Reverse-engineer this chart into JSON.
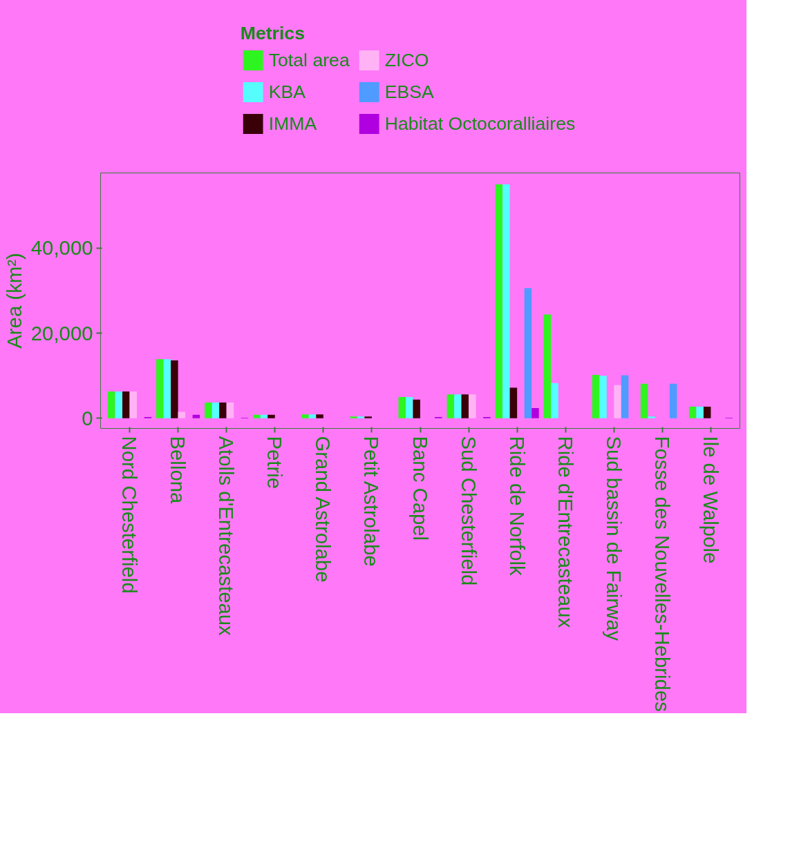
{
  "chart_data": {
    "type": "bar",
    "ylabel": "Area (km²)",
    "legend_title": "Metrics",
    "legend": "top",
    "categories": [
      "Nord Chesterfield",
      "Bellona",
      "Atolls d'Entrecasteaux",
      "Petrie",
      "Grand Astrolabe",
      "Petit Astrolabe",
      "Banc Capel",
      "Sud Chesterfield",
      "Ride de Norfolk",
      "Ride d'Entrecasteaux",
      "Sud bassin de Fairway",
      "Fosse des Nouvelles-Hebrides",
      "Ile de Walpole"
    ],
    "series": [
      {
        "name": "Total area",
        "color": "#2ef51f",
        "values": [
          6300,
          13900,
          3700,
          800,
          900,
          400,
          5000,
          5600,
          55000,
          24400,
          10200,
          8100,
          2700
        ]
      },
      {
        "name": "KBA",
        "color": "#55fdfd",
        "values": [
          6300,
          13900,
          3700,
          800,
          900,
          400,
          5000,
          5600,
          55000,
          8300,
          10000,
          400,
          2700
        ]
      },
      {
        "name": "IMMA",
        "color": "#3a0008",
        "values": [
          6300,
          13600,
          3700,
          800,
          900,
          400,
          4400,
          5600,
          7200,
          null,
          null,
          null,
          2700
        ]
      },
      {
        "name": "ZICO",
        "color": "#ffb3f5",
        "values": [
          6300,
          1500,
          3700,
          null,
          null,
          null,
          null,
          5600,
          null,
          null,
          7800,
          null,
          null
        ]
      },
      {
        "name": "EBSA",
        "color": "#4f9bff",
        "values": [
          null,
          null,
          null,
          null,
          null,
          null,
          null,
          null,
          30600,
          null,
          10100,
          8100,
          null
        ]
      },
      {
        "name": "Habitat Octocoralliaires",
        "color": "#b000e0",
        "values": [
          300,
          800,
          100,
          null,
          null,
          null,
          300,
          300,
          2400,
          null,
          null,
          null,
          100
        ]
      }
    ],
    "ylim": [
      -2400,
      57700
    ],
    "yticks": [
      {
        "value": 0,
        "label": "0"
      },
      {
        "value": 20000,
        "label": "20,000"
      },
      {
        "value": 40000,
        "label": "40,000"
      }
    ],
    "grid": false
  }
}
